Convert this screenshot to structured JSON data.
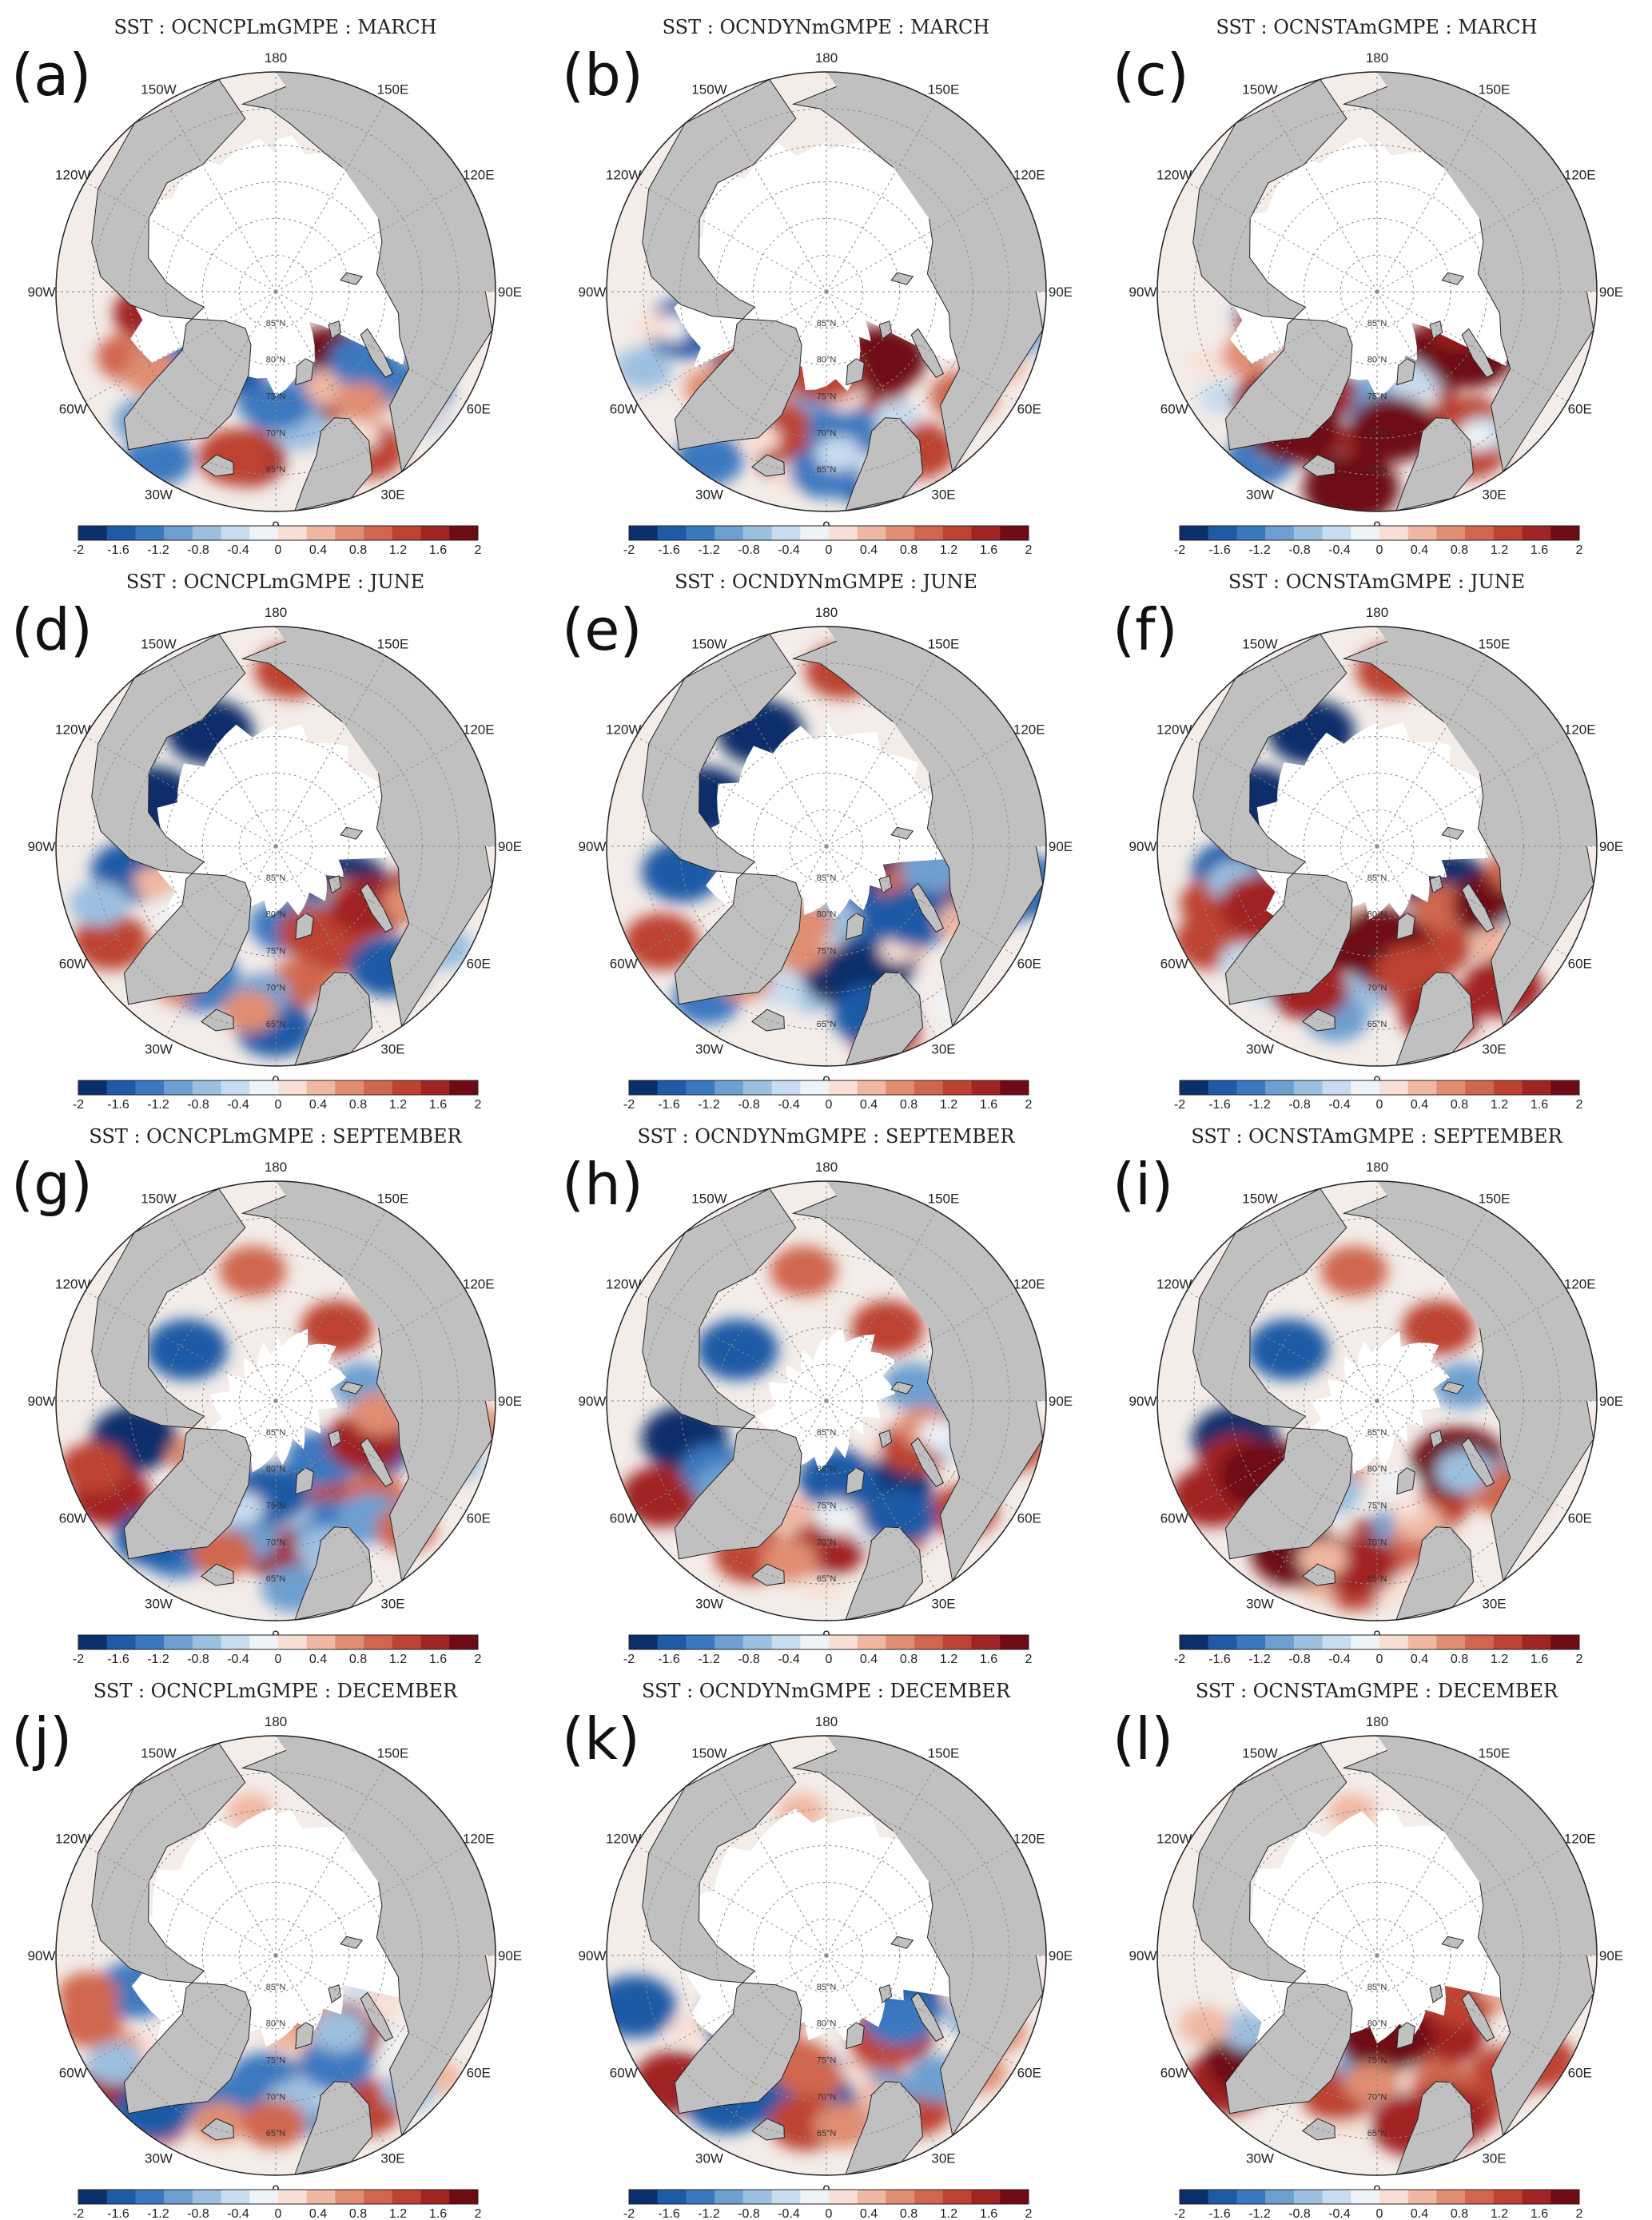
{
  "panels": [
    {
      "letter": "(a)",
      "title": "SST : OCNCPLmGMPE : MARCH",
      "month": "MARCH",
      "experiment": "OCNCPLmGMPE"
    },
    {
      "letter": "(b)",
      "title": "SST : OCNDYNmGMPE : MARCH",
      "month": "MARCH",
      "experiment": "OCNDYNmGMPE"
    },
    {
      "letter": "(c)",
      "title": "SST : OCNSTAmGMPE : MARCH",
      "month": "MARCH",
      "experiment": "OCNSTAmGMPE"
    },
    {
      "letter": "(d)",
      "title": "SST : OCNCPLmGMPE : JUNE",
      "month": "JUNE",
      "experiment": "OCNCPLmGMPE"
    },
    {
      "letter": "(e)",
      "title": "SST : OCNDYNmGMPE : JUNE",
      "month": "JUNE",
      "experiment": "OCNDYNmGMPE"
    },
    {
      "letter": "(f)",
      "title": "SST : OCNSTAmGMPE : JUNE",
      "month": "JUNE",
      "experiment": "OCNSTAmGMPE"
    },
    {
      "letter": "(g)",
      "title": "SST : OCNCPLmGMPE : SEPTEMBER",
      "month": "SEPTEMBER",
      "experiment": "OCNCPLmGMPE"
    },
    {
      "letter": "(h)",
      "title": "SST : OCNDYNmGMPE : SEPTEMBER",
      "month": "SEPTEMBER",
      "experiment": "OCNDYNmGMPE"
    },
    {
      "letter": "(i)",
      "title": "SST : OCNSTAmGMPE : SEPTEMBER",
      "month": "SEPTEMBER",
      "experiment": "OCNSTAmGMPE"
    },
    {
      "letter": "(j)",
      "title": "SST : OCNCPLmGMPE : DECEMBER",
      "month": "DECEMBER",
      "experiment": "OCNCPLmGMPE"
    },
    {
      "letter": "(k)",
      "title": "SST : OCNDYNmGMPE : DECEMBER",
      "month": "DECEMBER",
      "experiment": "OCNDYNmGMPE"
    },
    {
      "letter": "(l)",
      "title": "SST : OCNSTAmGMPE : DECEMBER",
      "month": "DECEMBER",
      "experiment": "OCNSTAmGMPE"
    }
  ],
  "map": {
    "projection": "north-polar-stereographic",
    "longitude_labels": [
      "180",
      "150E",
      "120E",
      "90E",
      "60E",
      "30E",
      "0",
      "30W",
      "60W",
      "90W",
      "120W",
      "150W"
    ],
    "latitude_labels": [
      "85°N",
      "80°N",
      "75°N",
      "70°N",
      "65°N"
    ],
    "colors": {
      "land": "#c0c0c0",
      "ice": "#ffffff",
      "gridline": "#8a8a8a",
      "coast": "#222222"
    }
  },
  "colorbar": {
    "tick_labels": [
      "-2",
      "-1.6",
      "-1.2",
      "-0.8",
      "-0.4",
      "0",
      "0.4",
      "0.8",
      "1.2",
      "1.6",
      "2"
    ],
    "colors": [
      "#0b2f6b",
      "#1f5aa6",
      "#3a78c0",
      "#6d9fd0",
      "#9cc0e0",
      "#c7dcee",
      "#eef3f7",
      "#f9e0d6",
      "#f0b8a3",
      "#e08d72",
      "#d0664e",
      "#bd4232",
      "#a12424",
      "#6e0b14"
    ],
    "range": [
      -2,
      2
    ]
  }
}
